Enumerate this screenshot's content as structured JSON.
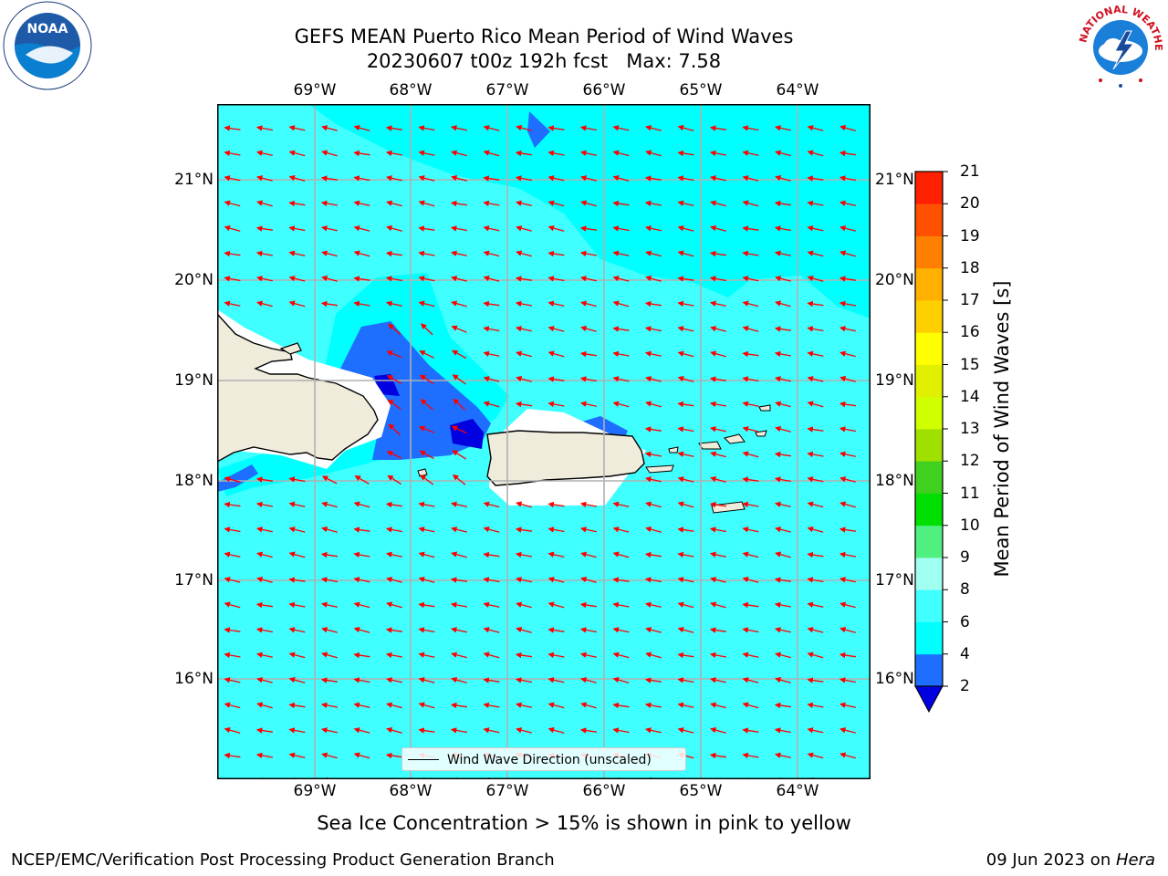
{
  "header": {
    "title_line1": "GEFS MEAN Puerto Rico Mean Period of Wind Waves",
    "title_line2": "20230607 t00z 192h fcst   Max: 7.58"
  },
  "logos": {
    "left": {
      "icon": "noaa-logo",
      "text": "NOAA"
    },
    "right": {
      "icon": "nws-logo",
      "text": "NATIONAL WEATHER SERVICE"
    }
  },
  "map": {
    "lon_labels": [
      "69°W",
      "68°W",
      "67°W",
      "66°W",
      "65°W",
      "64°W"
    ],
    "lat_labels": [
      "21°N",
      "20°N",
      "19°N",
      "18°N",
      "17°N",
      "16°N"
    ],
    "lon_range": [
      -69.98,
      -63.27
    ],
    "lat_range": [
      15.04,
      21.74
    ],
    "grid": true,
    "arrow_color": "#ff0000",
    "land_color": "#efecdc",
    "legend": {
      "label": "Wind Wave Direction (unscaled)",
      "placement": "bottom-center"
    }
  },
  "colorbar": {
    "title": "Mean Period of Wind Waves [s]",
    "ticks": [
      "2",
      "4",
      "6",
      "8",
      "9",
      "10",
      "11",
      "12",
      "13",
      "14",
      "15",
      "16",
      "17",
      "18",
      "19",
      "20",
      "21"
    ],
    "colors": [
      "#1e6eff",
      "#00ffff",
      "#40ffff",
      "#a0fff0",
      "#50f080",
      "#00e000",
      "#40d020",
      "#a0e000",
      "#d0ff00",
      "#e0f000",
      "#ffff00",
      "#ffd000",
      "#ffb000",
      "#ff8000",
      "#ff5000",
      "#ff2000"
    ],
    "under_color": "#0000e0"
  },
  "notes": {
    "ice": "Sea Ice Concentration > 15% is shown in pink to yellow"
  },
  "footer": {
    "left": "NCEP/EMC/Verification Post Processing Product Generation Branch",
    "right_prefix": "09 Jun 2023 on ",
    "right_host": "Hera"
  }
}
